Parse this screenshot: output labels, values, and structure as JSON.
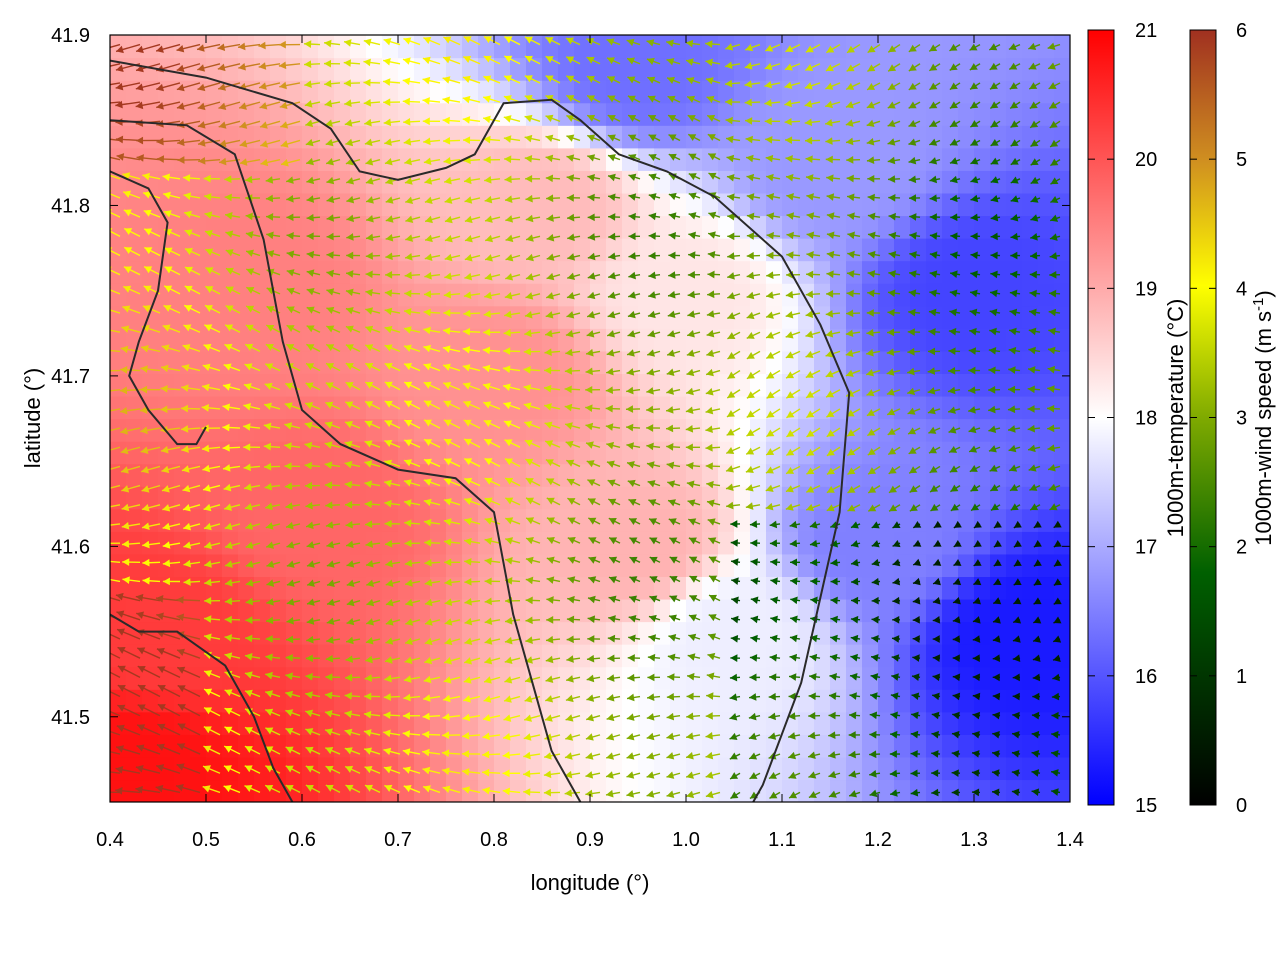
{
  "chart_data": {
    "type": "heatmap",
    "title": "",
    "xlabel": "longitude (°)",
    "ylabel": "latitude (°)",
    "xlim": [
      0.4,
      1.4
    ],
    "ylim": [
      41.45,
      41.9
    ],
    "x_ticks": [
      "0.4",
      "0.5",
      "0.6",
      "0.7",
      "0.8",
      "0.9",
      "1.0",
      "1.1",
      "1.2",
      "1.3",
      "1.4"
    ],
    "y_ticks": [
      "41.5",
      "41.6",
      "41.7",
      "41.8",
      "41.9"
    ],
    "grid": false,
    "temperature": {
      "label": "1000m-temperature (°C)",
      "range": [
        15,
        21
      ],
      "ticks": [
        "15",
        "16",
        "17",
        "18",
        "19",
        "20",
        "21"
      ],
      "palette": [
        "#0000ff",
        "#ffffff",
        "#ff0000"
      ],
      "field_samples": [
        {
          "lon": 0.42,
          "lat": 41.47,
          "value": 20.8
        },
        {
          "lon": 0.45,
          "lat": 41.55,
          "value": 20.3
        },
        {
          "lon": 0.62,
          "lat": 41.62,
          "value": 19.8
        },
        {
          "lon": 0.55,
          "lat": 41.75,
          "value": 19.5
        },
        {
          "lon": 0.8,
          "lat": 41.7,
          "value": 19.3
        },
        {
          "lon": 0.85,
          "lat": 41.8,
          "value": 18.8
        },
        {
          "lon": 0.95,
          "lat": 41.6,
          "value": 18.9
        },
        {
          "lon": 1.0,
          "lat": 41.75,
          "value": 18.3
        },
        {
          "lon": 1.05,
          "lat": 41.55,
          "value": 17.8
        },
        {
          "lon": 1.15,
          "lat": 41.82,
          "value": 16.8
        },
        {
          "lon": 1.2,
          "lat": 41.6,
          "value": 16.5
        },
        {
          "lon": 1.3,
          "lat": 41.75,
          "value": 15.8
        },
        {
          "lon": 1.35,
          "lat": 41.55,
          "value": 15.3
        },
        {
          "lon": 0.95,
          "lat": 41.88,
          "value": 16.3
        }
      ]
    },
    "wind_speed": {
      "label_main": "1000m-wind speed (m s",
      "label_sup": "-1",
      "label_end": ")",
      "range": [
        0,
        6
      ],
      "ticks": [
        "0",
        "1",
        "2",
        "3",
        "4",
        "5",
        "6"
      ],
      "palette": [
        "#000000",
        "#006000",
        "#7faa00",
        "#ffff00",
        "#d09020",
        "#a03020"
      ]
    },
    "contours": [
      [
        [
          0.4,
          41.885
        ],
        [
          0.5,
          41.875
        ],
        [
          0.59,
          41.86
        ],
        [
          0.63,
          41.845
        ],
        [
          0.66,
          41.82
        ],
        [
          0.7,
          41.815
        ],
        [
          0.75,
          41.822
        ],
        [
          0.78,
          41.83
        ],
        [
          0.81,
          41.86
        ],
        [
          0.86,
          41.862
        ],
        [
          0.89,
          41.85
        ],
        [
          0.93,
          41.83
        ],
        [
          0.98,
          41.82
        ],
        [
          1.03,
          41.805
        ],
        [
          1.1,
          41.77
        ],
        [
          1.14,
          41.73
        ],
        [
          1.17,
          41.69
        ],
        [
          1.16,
          41.62
        ],
        [
          1.14,
          41.57
        ],
        [
          1.12,
          41.52
        ],
        [
          1.08,
          41.46
        ],
        [
          1.07,
          41.45
        ]
      ],
      [
        [
          0.4,
          41.85
        ],
        [
          0.48,
          41.847
        ],
        [
          0.53,
          41.83
        ],
        [
          0.56,
          41.78
        ],
        [
          0.58,
          41.72
        ],
        [
          0.6,
          41.68
        ],
        [
          0.64,
          41.66
        ],
        [
          0.7,
          41.645
        ],
        [
          0.76,
          41.64
        ],
        [
          0.8,
          41.62
        ],
        [
          0.82,
          41.56
        ],
        [
          0.84,
          41.52
        ],
        [
          0.86,
          41.48
        ],
        [
          0.89,
          41.45
        ]
      ],
      [
        [
          0.4,
          41.82
        ],
        [
          0.44,
          41.81
        ],
        [
          0.46,
          41.79
        ],
        [
          0.45,
          41.75
        ],
        [
          0.43,
          41.72
        ],
        [
          0.42,
          41.7
        ],
        [
          0.44,
          41.68
        ],
        [
          0.47,
          41.66
        ],
        [
          0.49,
          41.66
        ],
        [
          0.5,
          41.67
        ]
      ],
      [
        [
          0.4,
          41.56
        ],
        [
          0.43,
          41.55
        ],
        [
          0.47,
          41.55
        ],
        [
          0.52,
          41.53
        ],
        [
          0.55,
          41.5
        ],
        [
          0.57,
          41.47
        ],
        [
          0.59,
          41.45
        ]
      ]
    ]
  }
}
